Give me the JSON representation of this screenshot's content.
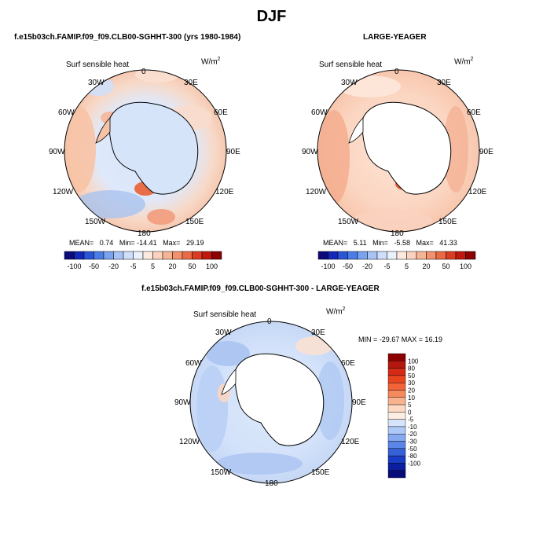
{
  "title": "DJF",
  "panels": [
    {
      "heading": "f.e15b03ch.FAMIP.f09_f09.CLB00-SGHHT-300 (yrs 1980-1984)",
      "variable": "Surf sensible heat",
      "units": "W/m",
      "units_exp": "2",
      "stats": {
        "mean_label": "MEAN=",
        "mean": "0.74",
        "min_label": "Min=",
        "min": "-14.41",
        "max_label": "Max=",
        "max": "29.19"
      }
    },
    {
      "heading": "LARGE-YEAGER",
      "variable": "Surf sensible heat",
      "units": "W/m",
      "units_exp": "2",
      "stats": {
        "mean_label": "MEAN=",
        "mean": "5.11",
        "min_label": "Min=",
        "min": "-5.58",
        "max_label": "Max=",
        "max": "41.33"
      }
    },
    {
      "heading": "f.e15b03ch.FAMIP.f09_f09.CLB00-SGHHT-300 - LARGE-YEAGER",
      "variable": "Surf sensible heat",
      "units": "W/m",
      "units_exp": "2",
      "minmax": "MIN = -29.67 MAX =  16.19"
    }
  ],
  "longitude_labels": [
    "0",
    "30E",
    "60E",
    "90E",
    "120E",
    "150E",
    "180",
    "150W",
    "120W",
    "90W",
    "60W",
    "30W"
  ],
  "horizontal_colorbar": {
    "tick_labels": [
      "-100",
      "-50",
      "-20",
      "-5",
      "5",
      "20",
      "50",
      "100"
    ],
    "colors": [
      "#0b0b7a",
      "#1427b8",
      "#2a55d4",
      "#4a7ee6",
      "#7aa3ef",
      "#a7c4f5",
      "#cfdefa",
      "#eaf1fd",
      "#fde9df",
      "#fbd2bd",
      "#f7b495",
      "#f2916b",
      "#ea6a45",
      "#db3d22",
      "#c0180f",
      "#8b0000"
    ]
  },
  "vertical_colorbar": {
    "tick_labels": [
      "100",
      "80",
      "50",
      "30",
      "20",
      "10",
      "5",
      "0",
      "-5",
      "-10",
      "-20",
      "-30",
      "-50",
      "-80",
      "-100"
    ],
    "colors": [
      "#8b0000",
      "#b3170f",
      "#d42a17",
      "#e84420",
      "#f26338",
      "#f58a5e",
      "#f9b28f",
      "#fdd8c3",
      "#fdece2",
      "#d5e3fb",
      "#aec8f7",
      "#86a9f0",
      "#5b85e6",
      "#3560d8",
      "#1a3bc4",
      "#0a1e9f",
      "#060c78"
    ]
  },
  "legend_colors": {
    "land": "#ffffff",
    "coast": "#000000",
    "base_light_blue": "#cfe0f8",
    "base_peach": "#fce6d6"
  }
}
